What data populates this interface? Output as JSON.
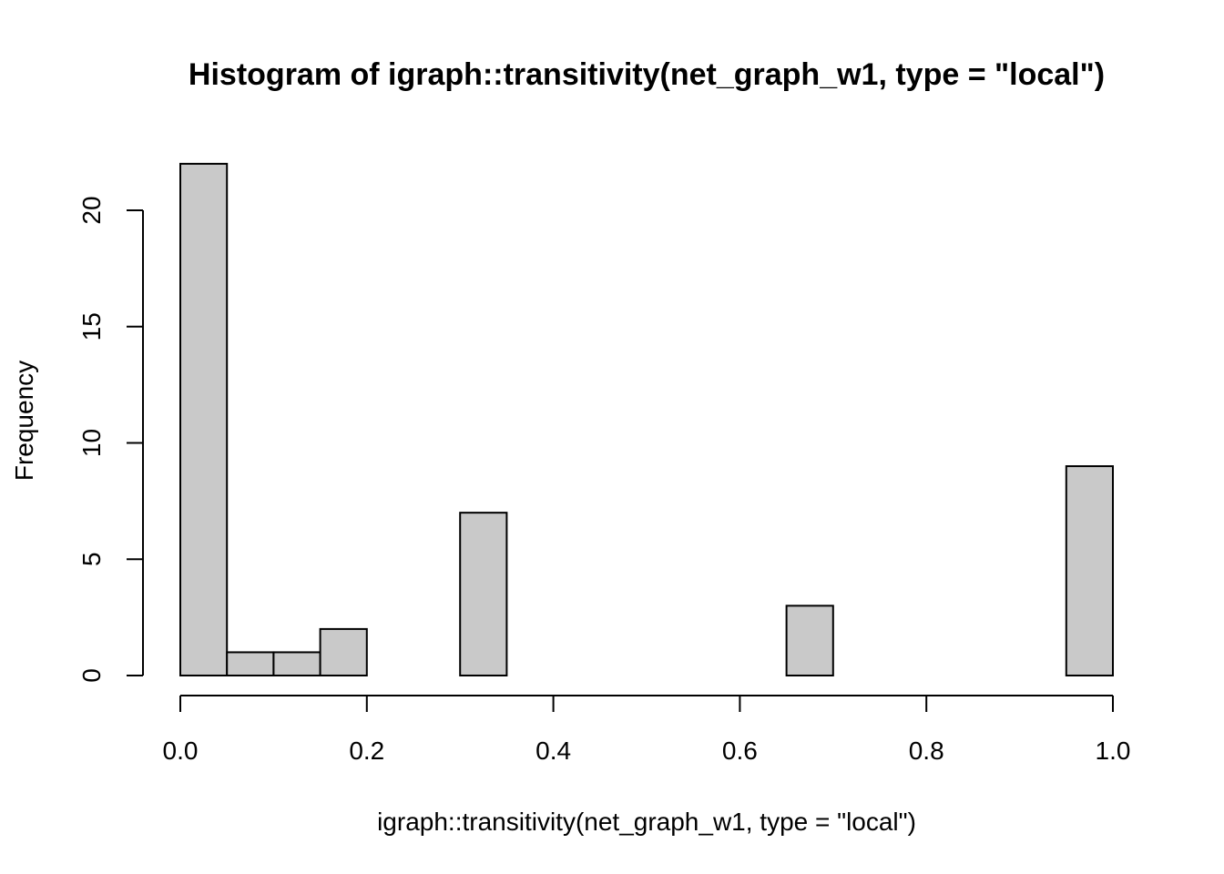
{
  "chart_data": {
    "type": "bar",
    "title": "Histogram of igraph::transitivity(net_graph_w1, type = \"local\")",
    "xlabel": "igraph::transitivity(net_graph_w1, type = \"local\")",
    "ylabel": "Frequency",
    "bin_edges": [
      0.0,
      0.05,
      0.1,
      0.15,
      0.2,
      0.25,
      0.3,
      0.35,
      0.4,
      0.45,
      0.5,
      0.55,
      0.6,
      0.65,
      0.7,
      0.75,
      0.8,
      0.85,
      0.9,
      0.95,
      1.0
    ],
    "values": [
      22,
      1,
      1,
      2,
      0,
      0,
      7,
      0,
      0,
      0,
      0,
      0,
      0,
      3,
      0,
      0,
      0,
      0,
      0,
      9
    ],
    "xlim": [
      0,
      1
    ],
    "ylim": [
      0,
      22
    ],
    "x_ticks": [
      0.0,
      0.2,
      0.4,
      0.6,
      0.8,
      1.0
    ],
    "x_tick_labels": [
      "0.0",
      "0.2",
      "0.4",
      "0.6",
      "0.8",
      "1.0"
    ],
    "y_ticks": [
      0,
      5,
      10,
      15,
      20
    ],
    "y_tick_labels": [
      "0",
      "5",
      "10",
      "15",
      "20"
    ],
    "bar_color": "#c9c9c9",
    "grid": false
  }
}
